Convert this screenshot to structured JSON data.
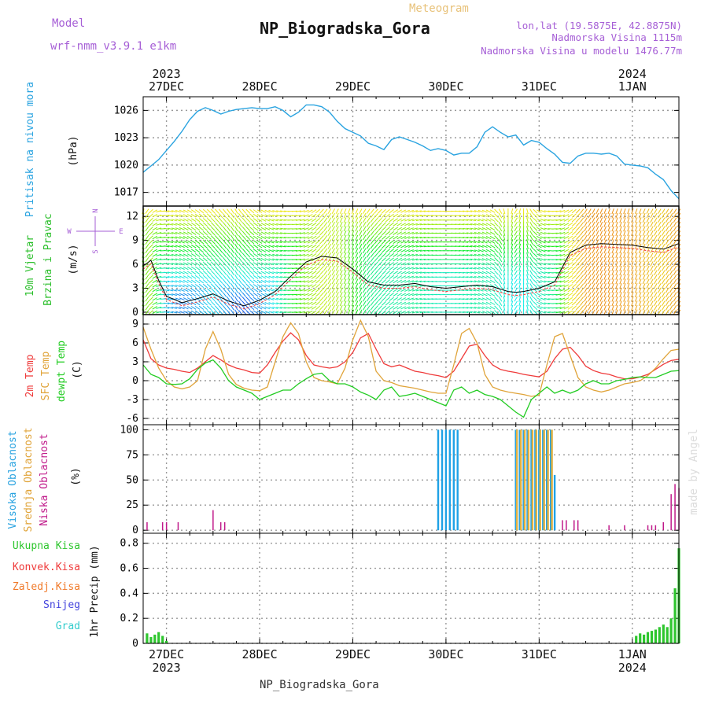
{
  "header": {
    "model_label": "Model",
    "model_value": "wrf-nmm_v3.9.1  e1km",
    "product": "Meteogram",
    "station": "NP_Biogradska_Gora",
    "coords": "lon,lat (19.5875E, 42.8875N)",
    "elevation": "Nadmorska Visina 1115m",
    "model_elevation": "Nadmorska Visina u modelu 1476.77m",
    "footer": "NP_Biogradska_Gora",
    "watermark": "made by Angel"
  },
  "colors": {
    "pressure": "#29a3e0",
    "temp2m": "#ef3b3b",
    "sfc_temp": "#e0a43a",
    "dewpoint": "#22cc22",
    "cloud_high": "#1fa2e6",
    "cloud_mid": "#e0b040",
    "cloud_low": "#c01a8a",
    "precip_total": "#2ec62e",
    "precip_conv": "#ef3b3b",
    "precip_frz": "#f07a2a",
    "snow": "#4444dd",
    "graupel": "#33cccc",
    "wind_label": "#2bbf2b",
    "panel_label_cloud": "#29a3e0"
  },
  "time_axis": {
    "top_years": [
      "2023",
      "2024"
    ],
    "top_days": [
      "27DEC",
      "28DEC",
      "29DEC",
      "30DEC",
      "31DEC",
      "1JAN"
    ],
    "bottom_days": [
      "27DEC",
      "28DEC",
      "29DEC",
      "30DEC",
      "31DEC",
      "1JAN"
    ],
    "bottom_years": [
      "2023",
      "2024"
    ],
    "range_hours": [
      -6,
      132
    ],
    "day_ticks_hours": [
      0,
      24,
      48,
      72,
      96,
      120
    ]
  },
  "panels": {
    "pressure": {
      "label": "Pritisak na nivou mora",
      "unit": "(hPa)"
    },
    "wind": {
      "label_1": "10m Vjetar",
      "label_2": "Brzina i Pravac",
      "unit": "(m/s)",
      "compass_n": "N",
      "compass_s": "S",
      "compass_w": "W",
      "compass_e": "E"
    },
    "temp": {
      "label_1": "2m Temp",
      "label_2": "SFC Temp",
      "label_3": "dewpt Temp",
      "unit": "(C)"
    },
    "cloud": {
      "label_1": "Visoka Oblacnost",
      "label_2": "Srednja Oblacnost",
      "label_3": "Niska Oblacnost",
      "unit": "(%)"
    },
    "precip": {
      "label": "1hr Precip (mm)",
      "legend": [
        "Ukupna Kisa",
        "Konvek.Kisa",
        "Zaledj.Kisa",
        "Snijeg",
        "Grad"
      ]
    }
  },
  "chart_data": [
    {
      "type": "line",
      "title": "Pritisak na nivou mora",
      "ylabel": "(hPa)",
      "x_unit": "hours from 27DEC 00UTC",
      "ylim": [
        1015.5,
        1027.5
      ],
      "yticks": [
        1017,
        1020,
        1023,
        1026
      ],
      "grid": true,
      "series": [
        {
          "name": "pressure",
          "x": [
            -6,
            -4,
            -2,
            0,
            2,
            4,
            6,
            8,
            10,
            12,
            14,
            16,
            18,
            20,
            22,
            24,
            26,
            28,
            30,
            32,
            34,
            36,
            38,
            40,
            42,
            44,
            46,
            48,
            50,
            52,
            54,
            56,
            58,
            60,
            62,
            64,
            66,
            68,
            70,
            72,
            74,
            76,
            78,
            80,
            82,
            84,
            86,
            88,
            90,
            92,
            94,
            96,
            98,
            100,
            102,
            104,
            106,
            108,
            110,
            112,
            114,
            116,
            118,
            120,
            122,
            124,
            126,
            128,
            130,
            132
          ],
          "y": [
            1019.2,
            1019.9,
            1020.6,
            1021.6,
            1022.6,
            1023.7,
            1025.0,
            1025.9,
            1026.3,
            1026.0,
            1025.6,
            1025.9,
            1026.1,
            1026.2,
            1026.3,
            1026.2,
            1026.2,
            1026.4,
            1026.0,
            1025.3,
            1025.8,
            1026.6,
            1026.6,
            1026.4,
            1025.8,
            1024.8,
            1024.0,
            1023.6,
            1023.2,
            1022.4,
            1022.1,
            1021.7,
            1022.8,
            1023.1,
            1022.8,
            1022.5,
            1022.1,
            1021.6,
            1021.8,
            1021.6,
            1021.1,
            1021.3,
            1021.3,
            1022.0,
            1023.6,
            1024.2,
            1023.6,
            1023.1,
            1023.3,
            1022.2,
            1022.7,
            1022.5,
            1021.8,
            1021.2,
            1020.3,
            1020.2,
            1021.0,
            1021.3,
            1021.3,
            1021.2,
            1021.3,
            1021.0,
            1020.1,
            1020.0,
            1019.9,
            1019.7,
            1019.0,
            1018.4,
            1017.2,
            1016.3
          ]
        }
      ]
    },
    {
      "type": "line",
      "title": "10m Vjetar Brzina i Pravac",
      "ylabel": "(m/s)",
      "x_unit": "hours from 27DEC 00UTC",
      "ylim": [
        -0.3,
        13.3
      ],
      "yticks": [
        0,
        3,
        6,
        9,
        12
      ],
      "grid": true,
      "series": [
        {
          "name": "speed",
          "x": [
            -6,
            -4,
            -2,
            0,
            4,
            8,
            12,
            16,
            20,
            24,
            28,
            32,
            36,
            40,
            44,
            48,
            52,
            56,
            60,
            64,
            68,
            72,
            76,
            80,
            84,
            88,
            90,
            92,
            96,
            100,
            104,
            108,
            112,
            116,
            120,
            124,
            128,
            132
          ],
          "y": [
            5.8,
            6.5,
            4.0,
            2.0,
            1.2,
            1.7,
            2.3,
            1.4,
            0.8,
            1.5,
            2.6,
            4.5,
            6.3,
            7.0,
            6.8,
            5.4,
            3.8,
            3.4,
            3.4,
            3.6,
            3.2,
            3.0,
            3.2,
            3.4,
            3.2,
            2.6,
            2.5,
            2.6,
            3.0,
            3.8,
            7.5,
            8.4,
            8.6,
            8.5,
            8.4,
            8.1,
            7.9,
            8.6
          ]
        },
        {
          "name": "direction_deg",
          "x": [
            -6,
            0,
            6,
            12,
            18,
            24,
            30,
            36,
            42,
            48,
            54,
            60,
            66,
            72,
            78,
            84,
            90,
            96,
            102,
            108,
            114,
            120,
            126,
            132
          ],
          "y": [
            200,
            280,
            300,
            315,
            330,
            300,
            280,
            250,
            210,
            200,
            220,
            240,
            260,
            270,
            280,
            300,
            30,
            300,
            250,
            210,
            200,
            200,
            210,
            210
          ]
        }
      ]
    },
    {
      "type": "line",
      "title": "2m Temp / SFC Temp / dewpt Temp",
      "ylabel": "(C)",
      "x_unit": "hours from 27DEC 00UTC",
      "ylim": [
        -7,
        10.5
      ],
      "yticks": [
        -6,
        -3,
        0,
        3,
        6,
        9
      ],
      "grid": true,
      "series": [
        {
          "name": "2m Temp",
          "x": [
            -6,
            -4,
            -2,
            0,
            2,
            4,
            6,
            8,
            10,
            12,
            14,
            16,
            18,
            20,
            22,
            24,
            26,
            28,
            30,
            32,
            34,
            36,
            38,
            40,
            42,
            44,
            46,
            48,
            50,
            52,
            54,
            56,
            58,
            60,
            62,
            64,
            66,
            68,
            70,
            72,
            74,
            76,
            78,
            80,
            82,
            84,
            86,
            88,
            90,
            92,
            94,
            96,
            98,
            100,
            102,
            104,
            106,
            108,
            110,
            112,
            114,
            116,
            118,
            120,
            122,
            124,
            126,
            128,
            130,
            132
          ],
          "y": [
            6.5,
            3.5,
            2.5,
            2.0,
            1.8,
            1.5,
            1.3,
            2.0,
            3.0,
            4.0,
            3.3,
            2.5,
            2.0,
            1.7,
            1.3,
            1.2,
            2.5,
            4.5,
            6.3,
            7.6,
            6.5,
            4.0,
            2.5,
            2.2,
            2.0,
            2.2,
            3.0,
            4.5,
            6.8,
            7.5,
            5.0,
            2.7,
            2.2,
            2.5,
            2.0,
            1.5,
            1.3,
            1.0,
            0.8,
            0.5,
            1.5,
            3.5,
            5.5,
            5.8,
            4.0,
            2.5,
            1.8,
            1.5,
            1.3,
            1.0,
            0.8,
            0.6,
            1.5,
            3.5,
            5.0,
            5.3,
            4.0,
            2.3,
            1.6,
            1.2,
            1.0,
            0.6,
            0.3,
            0.3,
            0.6,
            1.0,
            1.8,
            2.6,
            3.2,
            3.4
          ]
        },
        {
          "name": "SFC Temp",
          "x": [
            -6,
            -4,
            -2,
            0,
            2,
            4,
            6,
            8,
            10,
            12,
            14,
            16,
            18,
            20,
            22,
            24,
            26,
            28,
            30,
            32,
            34,
            36,
            38,
            40,
            42,
            44,
            46,
            48,
            50,
            52,
            54,
            56,
            58,
            60,
            62,
            64,
            66,
            68,
            70,
            72,
            74,
            76,
            78,
            80,
            82,
            84,
            86,
            88,
            90,
            92,
            94,
            96,
            98,
            100,
            102,
            104,
            106,
            108,
            110,
            112,
            114,
            116,
            118,
            120,
            122,
            124,
            126,
            128,
            130,
            132
          ],
          "y": [
            8.5,
            5.0,
            2.0,
            0.0,
            -1.0,
            -1.3,
            -1.0,
            0.0,
            5.0,
            7.8,
            5.0,
            1.0,
            -0.6,
            -1.2,
            -1.5,
            -1.6,
            -1.0,
            3.0,
            7.0,
            9.2,
            7.5,
            3.0,
            0.5,
            0.0,
            -0.2,
            -0.5,
            2.0,
            6.5,
            9.6,
            7.0,
            1.5,
            0.0,
            -0.3,
            -0.8,
            -1.0,
            -1.2,
            -1.5,
            -1.8,
            -2.0,
            -2.0,
            2.5,
            7.5,
            8.3,
            6.0,
            1.0,
            -1.0,
            -1.5,
            -1.8,
            -2.0,
            -2.2,
            -2.5,
            -2.3,
            2.5,
            7.0,
            7.5,
            4.0,
            0.5,
            -1.0,
            -1.5,
            -1.8,
            -1.5,
            -1.0,
            -0.5,
            -0.3,
            0.0,
            0.8,
            2.0,
            3.5,
            4.8,
            5.0
          ]
        },
        {
          "name": "dewpt Temp",
          "x": [
            -6,
            -4,
            -2,
            0,
            2,
            4,
            6,
            8,
            10,
            12,
            14,
            16,
            18,
            20,
            22,
            24,
            26,
            28,
            30,
            32,
            34,
            36,
            38,
            40,
            42,
            44,
            46,
            48,
            50,
            52,
            54,
            56,
            58,
            60,
            62,
            64,
            66,
            68,
            70,
            72,
            74,
            76,
            78,
            80,
            82,
            84,
            86,
            88,
            90,
            92,
            94,
            96,
            98,
            100,
            102,
            104,
            106,
            108,
            110,
            112,
            114,
            116,
            118,
            120,
            122,
            124,
            126,
            128,
            130,
            132
          ],
          "y": [
            2.5,
            1.0,
            0.5,
            -0.5,
            -0.6,
            -0.5,
            0.3,
            1.8,
            2.8,
            3.3,
            2.0,
            0.0,
            -1.0,
            -1.5,
            -2.0,
            -3.0,
            -2.5,
            -2.0,
            -1.5,
            -1.5,
            -0.5,
            0.3,
            1.0,
            1.2,
            0.0,
            -0.5,
            -0.5,
            -1.0,
            -1.8,
            -2.3,
            -3.0,
            -1.5,
            -1.0,
            -2.5,
            -2.3,
            -2.0,
            -2.5,
            -3.0,
            -3.5,
            -4.0,
            -1.5,
            -1.0,
            -2.0,
            -1.5,
            -2.2,
            -2.5,
            -3.0,
            -4.0,
            -5.0,
            -5.8,
            -3.0,
            -2.0,
            -1.0,
            -2.0,
            -1.5,
            -2.0,
            -1.5,
            -0.5,
            0.0,
            -0.5,
            -0.5,
            0.0,
            0.2,
            0.5,
            0.6,
            0.5,
            0.5,
            1.0,
            1.5,
            1.6
          ]
        }
      ]
    },
    {
      "type": "bar",
      "title": "Visoka / Srednja / Niska Oblacnost",
      "ylabel": "(%)",
      "x_unit": "hours from 27DEC 00UTC",
      "ylim": [
        -3,
        105
      ],
      "yticks": [
        0,
        25,
        50,
        75,
        100
      ],
      "grid": true,
      "series": [
        {
          "name": "Visoka Oblacnost",
          "x": [
            70,
            71,
            72,
            73,
            74,
            75,
            90,
            91,
            92,
            93,
            94,
            95,
            96,
            97,
            98,
            99,
            100
          ],
          "values": [
            100,
            100,
            100,
            100,
            100,
            100,
            100,
            100,
            100,
            100,
            100,
            100,
            100,
            100,
            100,
            100,
            55
          ]
        },
        {
          "name": "Srednja Oblacnost",
          "x": [
            90,
            91,
            92,
            93,
            94,
            95,
            96,
            97,
            98,
            99
          ],
          "values": [
            100,
            100,
            100,
            100,
            100,
            100,
            100,
            100,
            100,
            100
          ]
        },
        {
          "name": "Niska Oblacnost",
          "x": [
            -5,
            -1,
            0,
            3,
            12,
            14,
            15,
            102,
            103,
            105,
            106,
            114,
            118,
            124,
            125,
            126,
            128,
            130,
            131,
            132
          ],
          "values": [
            8,
            8,
            8,
            8,
            20,
            8,
            8,
            10,
            10,
            10,
            10,
            5,
            5,
            5,
            5,
            5,
            8,
            36,
            46,
            42
          ]
        }
      ]
    },
    {
      "type": "bar",
      "title": "1hr Precip",
      "ylabel": "1hr Precip (mm)",
      "x_unit": "hours from 27DEC 00UTC",
      "ylim": [
        0,
        0.88
      ],
      "yticks": [
        0,
        0.2,
        0.4,
        0.6,
        0.8
      ],
      "grid": true,
      "series": [
        {
          "name": "Ukupna Kisa",
          "x": [
            -5,
            -4,
            -3,
            -2,
            -1,
            0,
            121,
            122,
            123,
            124,
            125,
            126,
            127,
            128,
            129,
            130,
            131,
            132
          ],
          "values": [
            0.08,
            0.05,
            0.07,
            0.09,
            0.06,
            0.02,
            0.06,
            0.08,
            0.07,
            0.09,
            0.1,
            0.11,
            0.13,
            0.15,
            0.13,
            0.2,
            0.44,
            0.76
          ]
        }
      ]
    }
  ]
}
